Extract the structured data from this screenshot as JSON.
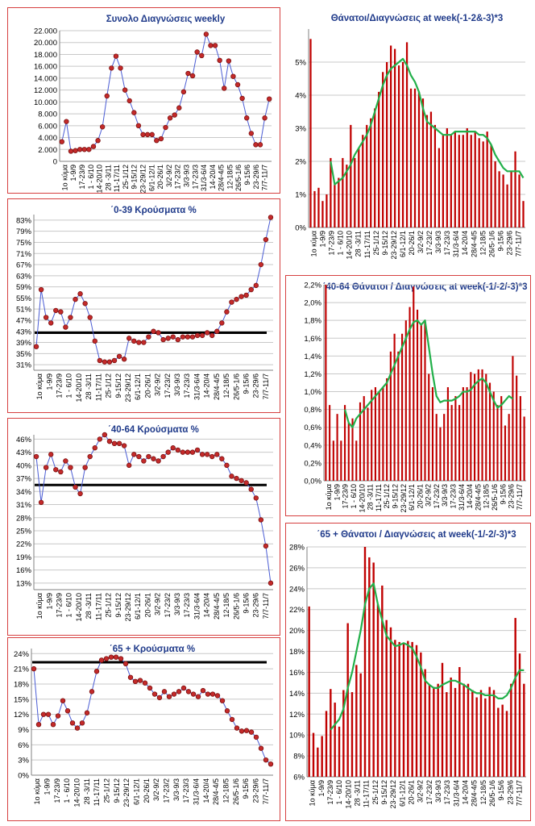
{
  "colors": {
    "line_series": "#4a5cd4",
    "marker_fill": "#c42a2a",
    "bar": "#c00000",
    "trend": "#22b04a",
    "reference": "#000000",
    "grid": "#c8c8c8",
    "panel_border": "#d64040"
  },
  "chart_data": [
    {
      "id": "weekly",
      "type": "line",
      "title": "Συνολο Διαγνώσεις weekly",
      "xlabel": "",
      "ylabel": "",
      "ylim": [
        0,
        22000
      ],
      "ytick_values": [
        0,
        2000,
        4000,
        6000,
        8000,
        10000,
        12000,
        14000,
        16000,
        18000,
        20000,
        22000
      ],
      "ytick_labels": [
        "0",
        "2.000",
        "4.000",
        "6.000",
        "8.000",
        "10.000",
        "12.000",
        "14.000",
        "16.000",
        "18.000",
        "20.000",
        "22.000"
      ],
      "xtick_labels": [
        "1ο κύμα",
        "1-9/9",
        "17-23/9",
        " 1 - 6/10",
        "14-20/10",
        "28 -3/11",
        "11-17/11",
        "25-1/12",
        "9-15/12",
        "23-29/12",
        "6/1-12/1",
        "20-26/1",
        "3/2-9/2",
        "17-23/2",
        "3/3-9/3",
        "17-23/3",
        "31/3-6/4",
        "14-20/4",
        "28/4-4/5",
        "12-18/5",
        "26/5-1/6",
        "9-15/6",
        "23-29/6",
        "7/7-11/7"
      ],
      "grid": true,
      "series": [
        {
          "values": [
            3300,
            6700,
            1700,
            1800,
            2000,
            2000,
            2000,
            2500,
            3500,
            5800,
            11000,
            15700,
            17700,
            15700,
            12000,
            10200,
            8200,
            6000,
            4500,
            4500,
            4500,
            3500,
            3800,
            5700,
            7300,
            7800,
            9000,
            11700,
            14800,
            14400,
            18400,
            17800,
            21400,
            19500,
            19500,
            17000,
            12300,
            16900,
            14300,
            12900,
            10600,
            7300,
            4700,
            2800,
            2800,
            7300,
            10500
          ]
        }
      ]
    },
    {
      "id": "deaths_all",
      "type": "bar",
      "title": "Θάνατοι/Διαγνώσεις at week(-1-2&-3)*3",
      "xlabel": "",
      "ylabel": "",
      "ylim": [
        0,
        6
      ],
      "ytick_values": [
        0,
        1,
        2,
        3,
        4,
        5
      ],
      "ytick_labels": [
        "0%",
        "1%",
        "2%",
        "3%",
        "4%",
        "5%"
      ],
      "xtick_labels": [
        "1ο κύμα",
        "1-9/9",
        "17-23/9",
        " 1 - 6/10",
        "14-20/10",
        "28 -3/11",
        "11-17/11",
        "25-1/12",
        "9-15/12",
        "23-29/12",
        "6/1-12/1",
        "20-26/1",
        "3/2-9/2",
        "17-23/2",
        "3/3-9/3",
        "17-23/3",
        "31/3-6/4",
        "14-20/4",
        "28/4-4/5",
        "12-18/5",
        "26/5-1/6",
        "9-15/6",
        "23-29/6",
        "7/7-11/7"
      ],
      "grid": true,
      "series": [
        {
          "values": [
            5.7,
            1.1,
            1.2,
            0.8,
            1.0,
            2.1,
            1.3,
            1.5,
            2.1,
            1.9,
            3.1,
            2.1,
            2.4,
            2.8,
            3.1,
            3.3,
            3.6,
            4.1,
            4.7,
            5.0,
            5.5,
            5.4,
            4.9,
            5.0,
            5.6,
            4.2,
            4.2,
            4.1,
            3.9,
            3.4,
            3.5,
            3.1,
            2.4,
            2.8,
            3.0,
            2.8,
            2.9,
            2.8,
            2.8,
            3.0,
            2.8,
            2.9,
            2.7,
            2.6,
            2.9,
            2.5,
            2.0,
            1.7,
            1.6,
            1.3,
            1.7,
            2.3,
            1.6,
            0.8
          ]
        },
        {
          "values": [
            null,
            null,
            null,
            null,
            null,
            2.0,
            1.3,
            1.4,
            1.5,
            1.7,
            1.9,
            2.2,
            2.4,
            2.6,
            2.8,
            3.1,
            3.5,
            3.9,
            4.3,
            4.6,
            4.8,
            4.9,
            5.0,
            5.1,
            4.9,
            4.6,
            4.4,
            4.1,
            3.6,
            3.2,
            3.1,
            3.0,
            2.9,
            2.8,
            2.8,
            2.8,
            2.9,
            2.9,
            2.9,
            2.9,
            2.9,
            2.9,
            2.8,
            2.8,
            2.7,
            2.5,
            2.2,
            2.0,
            1.8,
            1.7,
            1.7,
            1.7,
            1.7,
            1.5
          ]
        }
      ]
    },
    {
      "id": "cases_0_39",
      "type": "line",
      "title": "΄0-39 Κρούσματα %",
      "xlabel": "",
      "ylabel": "",
      "ylim": [
        29,
        85
      ],
      "ytick_values": [
        31,
        35,
        39,
        43,
        47,
        51,
        55,
        59,
        63,
        67,
        71,
        75,
        79,
        83
      ],
      "ytick_labels": [
        "31%",
        "35%",
        "39%",
        "43%",
        "47%",
        "51%",
        "55%",
        "59%",
        "63%",
        "67%",
        "71%",
        "75%",
        "79%",
        "83%"
      ],
      "xtick_labels": [
        "1ο κύμα",
        "1-9/9",
        "17-23/9",
        " 1 - 6/10",
        "14-20/10",
        "28 -3/11",
        "11-17/11",
        "25-1/12",
        "9-15/12",
        "23-29/12",
        "6/1-12/1",
        "20-26/1",
        "3/2-9/2",
        "17-23/2",
        "3/3-9/3",
        "17-23/3",
        "31/3-6/4",
        "14-20/4",
        "28/4-4/5",
        "12-18/5",
        "26/5-1/6",
        "9-15/6",
        "23-29/6",
        "7/7-11/7"
      ],
      "grid": true,
      "reference_line": 42.5,
      "series": [
        {
          "values": [
            37.5,
            58,
            48,
            46,
            50.5,
            50,
            44.5,
            48,
            54.5,
            56.5,
            53,
            48,
            39.5,
            32.5,
            32,
            32,
            32.5,
            34,
            33,
            40.5,
            39.5,
            39,
            39,
            41,
            43,
            42.5,
            40,
            40.5,
            41,
            40,
            41,
            41,
            41,
            41.5,
            41.5,
            42.5,
            41.5,
            43,
            46,
            50,
            53.5,
            54.5,
            55.5,
            56,
            58,
            59.5,
            67,
            76,
            84
          ]
        }
      ]
    },
    {
      "id": "deaths_40_64",
      "type": "bar",
      "title": "΄40-64 Θάνατοι / Διαγνώσεις at week(-1/-2/-3)*3",
      "xlabel": "",
      "ylabel": "",
      "ylim": [
        0,
        2.2
      ],
      "ytick_values": [
        0,
        0.2,
        0.4,
        0.6,
        0.8,
        1.0,
        1.2,
        1.4,
        1.6,
        1.8,
        2.0,
        2.2
      ],
      "ytick_labels": [
        "0,0%",
        "0,2%",
        "0,4%",
        "0,6%",
        "0,8%",
        "1,0%",
        "1,2%",
        "1,4%",
        "1,6%",
        "1,8%",
        "2,0%",
        "2,2%"
      ],
      "xtick_labels": [
        "1ο κύμα",
        "1-9/9",
        "17-23/9",
        "1 - 6/10",
        "14-20/10",
        "28 -3/11",
        "11-17/11",
        "25-1/12",
        "9-15/12",
        "23-29/12",
        "6/1-12/1",
        "20-26/1",
        "3/2-9/2",
        "17-23/2",
        "3/3-9/3",
        "17-23/3",
        "31/3-6/4",
        "14-20/4",
        "28/4-4/5",
        "12-18/5",
        "26/5-1/6",
        "9-15/6",
        "23-29/6",
        "7/7-11/7"
      ],
      "grid": true,
      "series": [
        {
          "values": [
            2.2,
            0.85,
            0.45,
            0.75,
            0.45,
            0.85,
            0.65,
            0.7,
            0.45,
            0.88,
            0.95,
            0.82,
            1.02,
            1.05,
            1.0,
            1.05,
            1.15,
            1.45,
            1.65,
            1.45,
            1.65,
            1.8,
            1.95,
            2.18,
            1.92,
            1.75,
            1.8,
            1.2,
            1.05,
            0.75,
            0.6,
            0.75,
            1.05,
            0.85,
            0.95,
            0.85,
            1.05,
            1.05,
            1.22,
            1.2,
            1.25,
            1.25,
            1.2,
            1.1,
            1.0,
            0.85,
            0.95,
            0.62,
            0.75,
            1.4,
            1.18,
            0.95,
            0.72
          ]
        },
        {
          "values": [
            null,
            null,
            null,
            null,
            null,
            0.8,
            0.65,
            0.6,
            0.7,
            0.75,
            0.8,
            0.85,
            0.9,
            0.95,
            1.0,
            1.05,
            1.1,
            1.2,
            1.3,
            1.4,
            1.5,
            1.6,
            1.7,
            1.78,
            1.8,
            1.75,
            1.8,
            1.5,
            1.2,
            0.95,
            0.88,
            0.9,
            0.9,
            0.9,
            0.92,
            0.95,
            1.0,
            1.0,
            1.02,
            1.08,
            1.12,
            1.15,
            1.1,
            1.0,
            0.9,
            0.82,
            0.85,
            0.9,
            0.95,
            0.92,
            null,
            null,
            null
          ]
        }
      ]
    },
    {
      "id": "cases_40_64",
      "type": "line",
      "title": "΄40-64 Κρούσματα %",
      "xlabel": "",
      "ylabel": "",
      "ylim": [
        11.5,
        47
      ],
      "ytick_values": [
        13,
        16,
        19,
        22,
        25,
        28,
        31,
        34,
        37,
        40,
        43,
        46
      ],
      "ytick_labels": [
        "13%",
        "16%",
        "19%",
        "22%",
        "25%",
        "28%",
        "31%",
        "34%",
        "37%",
        "40%",
        "43%",
        "46%"
      ],
      "xtick_labels": [
        "1ο κύμα",
        "1-9/9",
        "17-23/9",
        " 1 - 6/10",
        "14-20/10",
        "28 -3/11",
        "11-17/11",
        "25-1/12",
        "9-15/12",
        "23-29/12",
        "6/1-12/1",
        "20-26/1",
        "3/2-9/2",
        "17-23/2",
        "3/3-9/3",
        "17-23/3",
        "31/3-6/4",
        "14-20/4",
        "28/4-4/5",
        "12-18/5",
        "26/5-1/6",
        "9-15/6",
        "23-29/6",
        "7/7-11/7"
      ],
      "grid": true,
      "reference_line": 35.5,
      "series": [
        {
          "values": [
            42,
            31.5,
            39.5,
            42.5,
            39,
            38.5,
            41,
            39.5,
            35,
            33.5,
            39.5,
            42,
            44,
            46,
            47,
            45.5,
            45,
            45,
            44.5,
            40,
            42.5,
            42,
            41,
            42,
            41.5,
            41,
            42,
            43,
            44,
            43.5,
            43,
            43,
            43,
            43.5,
            42.5,
            42.5,
            42,
            42.5,
            41.5,
            40,
            37.5,
            37,
            36.5,
            36,
            34.5,
            32.5,
            27.5,
            21.5,
            13
          ]
        }
      ]
    },
    {
      "id": "deaths_65",
      "type": "bar",
      "title": "΄65 + Θάνατοι / Διαγνώσεις at week(-1/-2/-3)*3",
      "xlabel": "",
      "ylabel": "",
      "ylim": [
        6,
        28
      ],
      "ytick_values": [
        6,
        8,
        10,
        12,
        14,
        16,
        18,
        20,
        22,
        24,
        26,
        28
      ],
      "ytick_labels": [
        "6%",
        "8%",
        "10%",
        "12%",
        "14%",
        "16%",
        "18%",
        "20%",
        "22%",
        "24%",
        "26%",
        "28%"
      ],
      "xtick_labels": [
        "1ο κύμα",
        "1-9/9",
        "17-23/9",
        "1 - 6/10",
        "14-20/10",
        "28 -3/11",
        "11-17/11",
        "25-1/12",
        "9-15/12",
        "23-29/12",
        "6/1-12/1",
        "20-26/1",
        "3/2-9/2",
        "17-23/2",
        "3/3-9/3",
        "17-23/3",
        "31/3-6/4",
        "14-20/4",
        "28/4-4/5",
        "12-18/5",
        "26/5-1/6",
        "9-15/6",
        "23-29/6",
        "7/7-11/7"
      ],
      "grid": true,
      "series": [
        {
          "values": [
            22.3,
            10.2,
            8.8,
            9.9,
            12.3,
            14.4,
            13.1,
            10.8,
            14.3,
            20.7,
            14.1,
            16.7,
            15.9,
            28,
            27,
            26.5,
            22.5,
            24.3,
            21,
            20.3,
            19.1,
            18.9,
            18.8,
            19,
            18.9,
            18.6,
            17.9,
            16.3,
            14.8,
            14.6,
            14.9,
            16.9,
            14.1,
            15.5,
            14.5,
            16.5,
            14.9,
            14.9,
            14.3,
            13.6,
            14.3,
            13.5,
            14.6,
            14.3,
            12.6,
            12.9,
            12.3,
            14.9,
            21.2,
            17.8,
            14.9
          ]
        },
        {
          "values": [
            null,
            null,
            null,
            null,
            null,
            10.5,
            11,
            11.5,
            12.5,
            14.5,
            16,
            18,
            20,
            22.5,
            24,
            24.5,
            22.5,
            21,
            19.5,
            19,
            18.5,
            18.6,
            18.8,
            18.6,
            18.3,
            17.5,
            16.5,
            15.2,
            14.8,
            14.5,
            14.5,
            14.8,
            15,
            15.2,
            15.2,
            15,
            14.8,
            14.5,
            14.2,
            14,
            14,
            13.8,
            13.8,
            13.8,
            13.5,
            13.5,
            13.8,
            14.5,
            15.5,
            16.2,
            16.2
          ]
        }
      ]
    },
    {
      "id": "cases_65",
      "type": "line",
      "title": "΄65 + Κρούσματα %",
      "xlabel": "",
      "ylabel": "",
      "ylim": [
        0,
        25
      ],
      "ytick_values": [
        0,
        3,
        6,
        9,
        12,
        15,
        18,
        21,
        24
      ],
      "ytick_labels": [
        "0%",
        "3%",
        "6%",
        "9%",
        "12%",
        "15%",
        "18%",
        "21%",
        "24%"
      ],
      "xtick_labels": [
        "1ο κύμα",
        "1-9/9",
        "17-23/9",
        " 1 - 6/10",
        "14-20/10",
        "28 -3/11",
        "11-17/11",
        "25-1/12",
        "9-15/12",
        "23-29/12",
        "6/1-12/1",
        "20-26/1",
        "3/2-9/2",
        "17-23/2",
        "3/3-9/3",
        "17-23/3",
        "31/3-6/4",
        "14-20/4",
        "28/4-4/5",
        "12-18/5",
        "26/5-1/6",
        "9-15/6",
        "23-29/6",
        "7/7-11/7"
      ],
      "grid": true,
      "reference_line": 22.3,
      "series": [
        {
          "values": [
            21,
            10,
            12,
            12,
            10,
            11.7,
            14.7,
            12.7,
            10.3,
            9.3,
            10.3,
            12.3,
            16.5,
            20.5,
            22.7,
            23,
            23.3,
            23.3,
            23,
            22,
            19.3,
            18.5,
            18.7,
            18.2,
            17.2,
            16,
            15.3,
            16.5,
            15.5,
            16,
            16.5,
            17.2,
            16.5,
            16,
            15.5,
            16.7,
            16,
            16,
            15.7,
            14.7,
            12.7,
            11,
            9.3,
            8.7,
            8.8,
            8.5,
            7.5,
            5.3,
            3,
            2.2
          ]
        }
      ]
    }
  ]
}
